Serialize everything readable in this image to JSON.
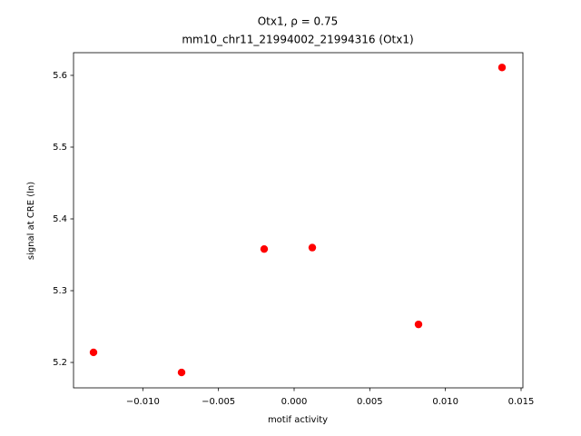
{
  "chart_data": {
    "type": "scatter",
    "title": "Otx1, ρ = 0.75",
    "subtitle": "mm10_chr11_21994002_21994316 (Otx1)",
    "xlabel": "motif activity",
    "ylabel": "signal at CRE (ln)",
    "color": "#ff0000",
    "x": [
      -0.01326,
      -0.00744,
      -0.00198,
      0.0012,
      0.00822,
      0.01374
    ],
    "values": [
      5.214,
      5.186,
      5.358,
      5.36,
      5.253,
      5.611
    ],
    "xlim": [
      -0.01458,
      0.01512
    ],
    "ylim": [
      5.1646,
      5.6316
    ],
    "xticks": [
      {
        "value": -0.01,
        "label": "−0.010"
      },
      {
        "value": -0.005,
        "label": "−0.005"
      },
      {
        "value": 0,
        "label": "0.000"
      },
      {
        "value": 0.005,
        "label": "0.005"
      },
      {
        "value": 0.01,
        "label": "0.010"
      },
      {
        "value": 0.015,
        "label": "0.015"
      }
    ],
    "yticks": [
      5.2,
      5.3,
      5.4,
      5.5,
      5.6
    ],
    "grid": false
  }
}
